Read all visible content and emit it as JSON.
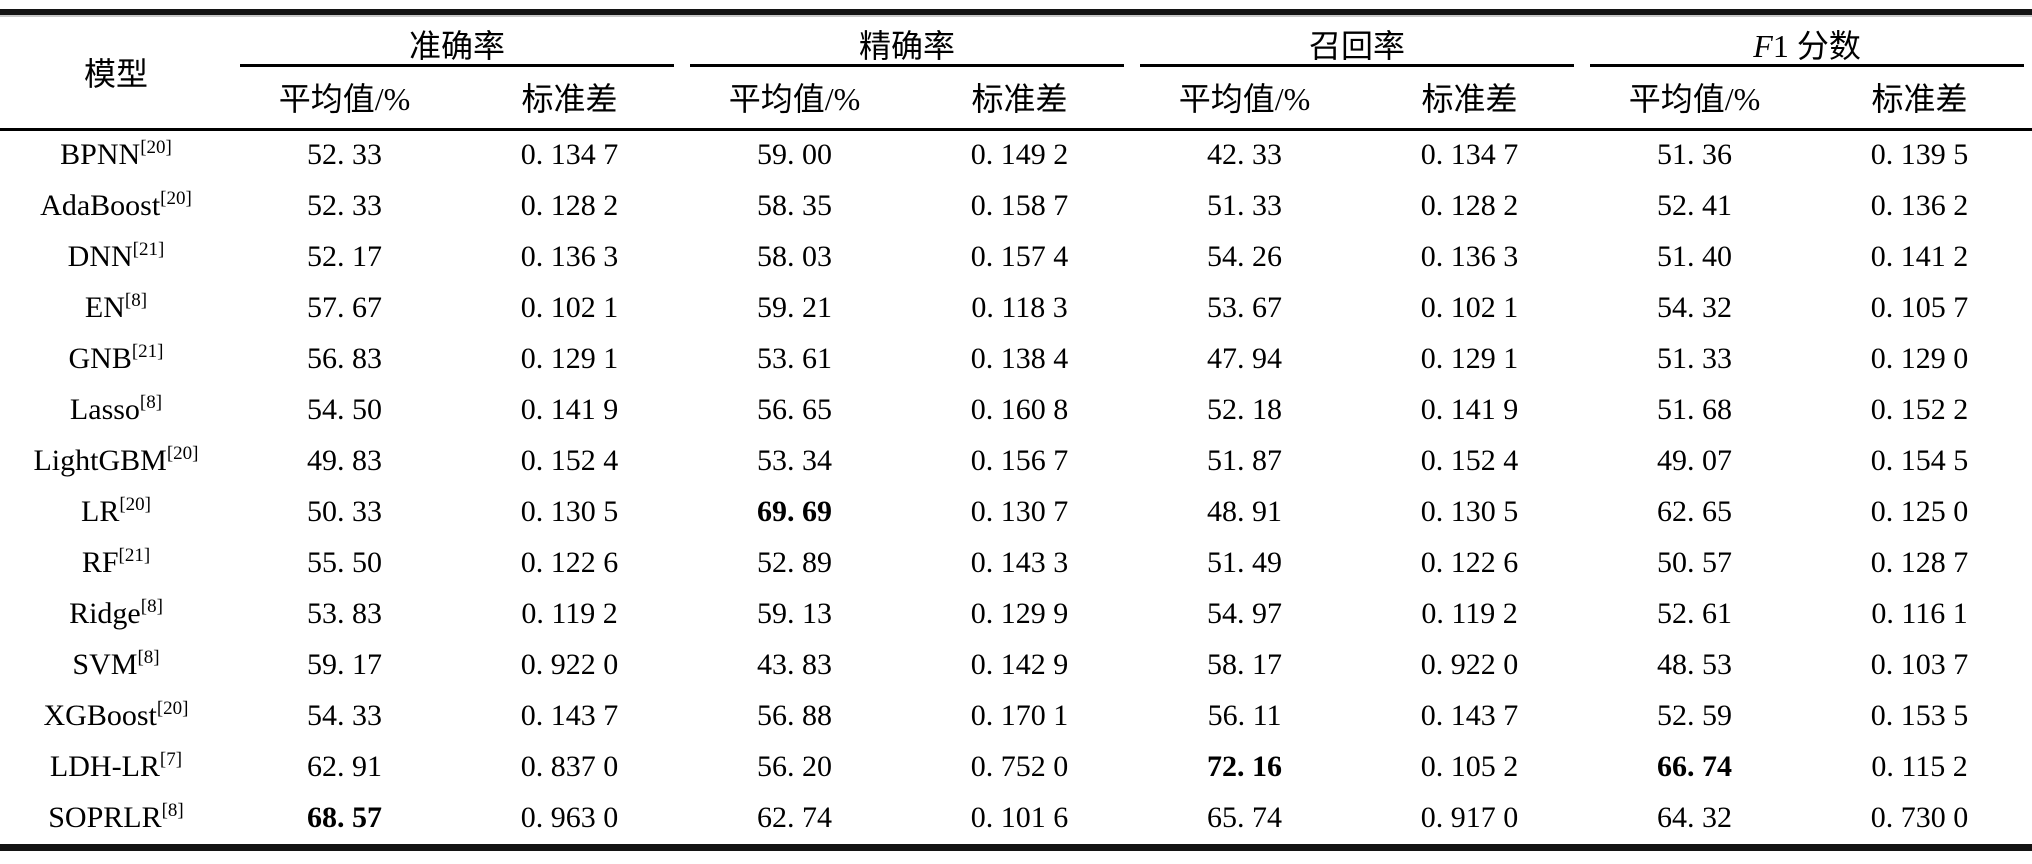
{
  "table": {
    "model_header": "模型",
    "groups": [
      {
        "label": "准确率"
      },
      {
        "label": "精确率"
      },
      {
        "label": "召回率"
      },
      {
        "label_italic": "F",
        "label_rest": "1 分数"
      }
    ],
    "subheaders": {
      "mean": "平均值/%",
      "std": "标准差"
    },
    "rows": [
      {
        "model": "BPNN",
        "ref": "[20]",
        "values": [
          "52. 33",
          "0. 134 7",
          "59. 00",
          "0. 149 2",
          "42. 33",
          "0. 134 7",
          "51. 36",
          "0. 139 5"
        ],
        "bold": []
      },
      {
        "model": "AdaBoost",
        "ref": "[20]",
        "values": [
          "52. 33",
          "0. 128 2",
          "58. 35",
          "0. 158 7",
          "51. 33",
          "0. 128 2",
          "52. 41",
          "0. 136 2"
        ],
        "bold": []
      },
      {
        "model": "DNN",
        "ref": "[21]",
        "values": [
          "52. 17",
          "0. 136 3",
          "58. 03",
          "0. 157 4",
          "54. 26",
          "0. 136 3",
          "51. 40",
          "0. 141 2"
        ],
        "bold": []
      },
      {
        "model": "EN",
        "ref": "[8]",
        "values": [
          "57. 67",
          "0. 102 1",
          "59. 21",
          "0. 118 3",
          "53. 67",
          "0. 102 1",
          "54. 32",
          "0. 105 7"
        ],
        "bold": []
      },
      {
        "model": "GNB",
        "ref": "[21]",
        "values": [
          "56. 83",
          "0. 129 1",
          "53. 61",
          "0. 138 4",
          "47. 94",
          "0. 129 1",
          "51. 33",
          "0. 129 0"
        ],
        "bold": []
      },
      {
        "model": "Lasso",
        "ref": "[8]",
        "values": [
          "54. 50",
          "0. 141 9",
          "56. 65",
          "0. 160 8",
          "52. 18",
          "0. 141 9",
          "51. 68",
          "0. 152 2"
        ],
        "bold": []
      },
      {
        "model": "LightGBM",
        "ref": "[20]",
        "values": [
          "49. 83",
          "0. 152 4",
          "53. 34",
          "0. 156 7",
          "51. 87",
          "0. 152 4",
          "49. 07",
          "0. 154 5"
        ],
        "bold": []
      },
      {
        "model": "LR",
        "ref": "[20]",
        "values": [
          "50. 33",
          "0. 130 5",
          "69. 69",
          "0. 130 7",
          "48. 91",
          "0. 130 5",
          "62. 65",
          "0. 125 0"
        ],
        "bold": [
          2
        ]
      },
      {
        "model": "RF",
        "ref": "[21]",
        "values": [
          "55. 50",
          "0. 122 6",
          "52. 89",
          "0. 143 3",
          "51. 49",
          "0. 122 6",
          "50. 57",
          "0. 128 7"
        ],
        "bold": []
      },
      {
        "model": "Ridge",
        "ref": "[8]",
        "values": [
          "53. 83",
          "0. 119 2",
          "59. 13",
          "0. 129 9",
          "54. 97",
          "0. 119 2",
          "52. 61",
          "0. 116 1"
        ],
        "bold": []
      },
      {
        "model": "SVM",
        "ref": "[8]",
        "values": [
          "59. 17",
          "0. 922 0",
          "43. 83",
          "0. 142 9",
          "58. 17",
          "0. 922 0",
          "48. 53",
          "0. 103 7"
        ],
        "bold": []
      },
      {
        "model": "XGBoost",
        "ref": "[20]",
        "values": [
          "54. 33",
          "0. 143 7",
          "56. 88",
          "0. 170 1",
          "56. 11",
          "0. 143 7",
          "52. 59",
          "0. 153 5"
        ],
        "bold": []
      },
      {
        "model": "LDH-LR",
        "ref": "[7]",
        "values": [
          "62. 91",
          "0. 837 0",
          "56. 20",
          "0. 752 0",
          "72. 16",
          "0. 105 2",
          "66. 74",
          "0. 115 2"
        ],
        "bold": [
          4,
          6
        ]
      },
      {
        "model": "SOPRLR",
        "ref": "[8]",
        "values": [
          "68. 57",
          "0. 963 0",
          "62. 74",
          "0. 101 6",
          "65. 74",
          "0. 917 0",
          "64. 32",
          "0. 730 0"
        ],
        "bold": [
          0
        ]
      }
    ]
  }
}
